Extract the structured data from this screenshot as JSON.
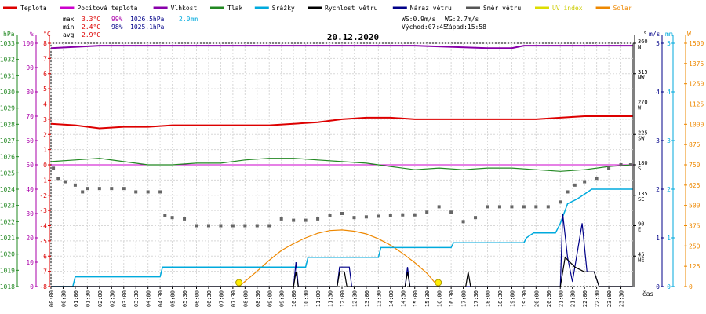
{
  "legend": [
    {
      "label": "Teplota",
      "color": "#dd0000"
    },
    {
      "label": "Pocitová teplota",
      "color": "#cc00cc"
    },
    {
      "label": "Vlhkost",
      "color": "#8800aa"
    },
    {
      "label": "Tlak",
      "color": "#228822"
    },
    {
      "label": "Srážky",
      "color": "#00aadd"
    },
    {
      "label": "Rychlost větru",
      "color": "#000000"
    },
    {
      "label": "Náraz větru",
      "color": "#000088"
    },
    {
      "label": "Směr větru",
      "color": "#555555"
    },
    {
      "label": "UV index",
      "color": "#dddd00"
    },
    {
      "label": "Solar",
      "color": "#ee8800"
    }
  ],
  "stats": {
    "max": {
      "label": "max",
      "temp": "3.3°C",
      "hum": "99%",
      "press": "1026.5hPa",
      "rain": "2.0mm"
    },
    "min": {
      "label": "min",
      "temp": "2.4°C",
      "hum": "98%",
      "press": "1025.1hPa"
    },
    "avg": {
      "label": "avg",
      "temp": "2.9°C"
    }
  },
  "wind_info": {
    "ws": "WS:0.9m/s",
    "wg": "WG:2.7m/s",
    "sunrise": "Východ:07:45",
    "sunset": "Západ:15:58"
  },
  "units": {
    "hpa": "hPa",
    "pct": "%",
    "degc": "°C",
    "deg": "°",
    "ms": "m/s",
    "mm": "mm",
    "w": "W",
    "time": "čas"
  },
  "chart_data": {
    "type": "line",
    "title": "20.12.2020",
    "x_ticks": [
      "00:00",
      "00:30",
      "01:00",
      "01:30",
      "02:00",
      "02:30",
      "03:00",
      "03:30",
      "04:00",
      "04:30",
      "05:00",
      "05:30",
      "06:00",
      "06:30",
      "07:00",
      "07:30",
      "08:00",
      "08:30",
      "09:00",
      "09:30",
      "10:00",
      "10:30",
      "11:00",
      "11:30",
      "12:00",
      "12:30",
      "13:00",
      "13:30",
      "14:00",
      "14:30",
      "15:00",
      "15:30",
      "16:00",
      "16:30",
      "17:00",
      "17:30",
      "18:00",
      "18:30",
      "19:00",
      "19:30",
      "20:00",
      "20:30",
      "21:00",
      "21:30",
      "22:00",
      "22:30",
      "23:00",
      "23:30"
    ],
    "axes": {
      "pressure_hpa": {
        "range": [
          1018,
          1033
        ],
        "ticks": [
          "1033",
          "1032",
          "1031",
          "1030",
          "1029",
          "1028",
          "1027",
          "1026",
          "1025",
          "1024",
          "1023",
          "1022",
          "1021",
          "1020",
          "1019",
          "1018"
        ]
      },
      "humidity_pct": {
        "range": [
          0,
          100
        ],
        "ticks": [
          "100",
          "90",
          "80",
          "70",
          "60",
          "50",
          "40",
          "30",
          "20",
          "10",
          "0"
        ]
      },
      "temperature_c": {
        "range": [
          -8,
          8
        ],
        "ticks": [
          "8",
          "7",
          "6",
          "5",
          "4",
          "3",
          "2",
          "1",
          "0",
          "-1",
          "-2",
          "-3",
          "-4",
          "-5",
          "-6",
          "-7",
          "-8"
        ]
      },
      "wind_dir_deg": {
        "range": [
          0,
          360
        ],
        "ticks": [
          {
            "v": "360",
            "d": "N"
          },
          {
            "v": "315",
            "d": "NW"
          },
          {
            "v": "270",
            "d": "W"
          },
          {
            "v": "225",
            "d": "SW"
          },
          {
            "v": "180",
            "d": "S"
          },
          {
            "v": "135",
            "d": "SE"
          },
          {
            "v": "90",
            "d": "E"
          },
          {
            "v": "45",
            "d": "NE"
          }
        ]
      },
      "wind_speed_ms": {
        "range": [
          0,
          5
        ],
        "ticks": [
          "5",
          "4",
          "3",
          "2",
          "1",
          "0"
        ]
      },
      "rain_mm": {
        "range": [
          0,
          5
        ],
        "ticks": [
          "5",
          "4",
          "3",
          "2",
          "1",
          "0"
        ]
      },
      "solar_w": {
        "range": [
          0,
          1500
        ],
        "ticks": [
          "1500",
          "1375",
          "1250",
          "1125",
          "1000",
          "875",
          "750",
          "625",
          "500",
          "375",
          "250",
          "125",
          "0"
        ]
      }
    },
    "series": [
      {
        "name": "Teplota",
        "unit": "°C",
        "points": [
          [
            0,
            2.7
          ],
          [
            1,
            2.6
          ],
          [
            2,
            2.4
          ],
          [
            3,
            2.5
          ],
          [
            4,
            2.5
          ],
          [
            5,
            2.6
          ],
          [
            6,
            2.6
          ],
          [
            7,
            2.6
          ],
          [
            8,
            2.6
          ],
          [
            9,
            2.6
          ],
          [
            10,
            2.7
          ],
          [
            11,
            2.8
          ],
          [
            12,
            3.0
          ],
          [
            13,
            3.1
          ],
          [
            14,
            3.1
          ],
          [
            15,
            3.0
          ],
          [
            16,
            3.0
          ],
          [
            17,
            3.0
          ],
          [
            18,
            3.0
          ],
          [
            19,
            3.0
          ],
          [
            20,
            3.0
          ],
          [
            21,
            3.1
          ],
          [
            22,
            3.2
          ],
          [
            23,
            3.2
          ],
          [
            23.98,
            3.2
          ]
        ]
      },
      {
        "name": "Vlhkost",
        "unit": "%",
        "points": [
          [
            0,
            98
          ],
          [
            2,
            99
          ],
          [
            4,
            99
          ],
          [
            8,
            99
          ],
          [
            12,
            99
          ],
          [
            15,
            99
          ],
          [
            18,
            98
          ],
          [
            19,
            98
          ],
          [
            19.5,
            99
          ],
          [
            23.98,
            99
          ]
        ]
      },
      {
        "name": "Tlak",
        "unit": "hPa",
        "points": [
          [
            0,
            1025.7
          ],
          [
            1,
            1025.8
          ],
          [
            2,
            1025.9
          ],
          [
            3,
            1025.7
          ],
          [
            4,
            1025.5
          ],
          [
            5,
            1025.5
          ],
          [
            6,
            1025.6
          ],
          [
            7,
            1025.6
          ],
          [
            8,
            1025.8
          ],
          [
            9,
            1025.9
          ],
          [
            10,
            1025.9
          ],
          [
            11,
            1025.8
          ],
          [
            12,
            1025.7
          ],
          [
            13,
            1025.6
          ],
          [
            14,
            1025.4
          ],
          [
            15,
            1025.2
          ],
          [
            16,
            1025.3
          ],
          [
            17,
            1025.2
          ],
          [
            18,
            1025.3
          ],
          [
            19,
            1025.3
          ],
          [
            20,
            1025.2
          ],
          [
            21,
            1025.1
          ],
          [
            22,
            1025.2
          ],
          [
            23,
            1025.4
          ],
          [
            23.98,
            1025.5
          ]
        ]
      },
      {
        "name": "Srážky",
        "unit": "mm",
        "points": [
          [
            0,
            0
          ],
          [
            0.9,
            0
          ],
          [
            1,
            0.2
          ],
          [
            4.5,
            0.2
          ],
          [
            4.6,
            0.4
          ],
          [
            10.5,
            0.4
          ],
          [
            10.6,
            0.6
          ],
          [
            13.5,
            0.6
          ],
          [
            13.6,
            0.8
          ],
          [
            16.5,
            0.8
          ],
          [
            16.6,
            0.9
          ],
          [
            19.5,
            0.9
          ],
          [
            19.6,
            1.0
          ],
          [
            19.9,
            1.1
          ],
          [
            20.8,
            1.1
          ],
          [
            21,
            1.3
          ],
          [
            21.3,
            1.7
          ],
          [
            21.7,
            1.8
          ],
          [
            22,
            1.9
          ],
          [
            22.3,
            2.0
          ],
          [
            23,
            2.0
          ],
          [
            23.98,
            2.0
          ]
        ]
      },
      {
        "name": "Rychlost větru",
        "unit": "m/s",
        "points": [
          [
            0,
            0
          ],
          [
            10,
            0
          ],
          [
            10.1,
            0.3
          ],
          [
            10.2,
            0
          ],
          [
            11.8,
            0
          ],
          [
            11.9,
            0.3
          ],
          [
            12.1,
            0.3
          ],
          [
            12.2,
            0
          ],
          [
            14.6,
            0
          ],
          [
            14.7,
            0.3
          ],
          [
            14.8,
            0
          ],
          [
            17.1,
            0
          ],
          [
            17.2,
            0.3
          ],
          [
            17.3,
            0
          ],
          [
            21,
            0
          ],
          [
            21.2,
            0.6
          ],
          [
            21.6,
            0.4
          ],
          [
            22,
            0.3
          ],
          [
            22.4,
            0.3
          ],
          [
            22.6,
            0
          ],
          [
            23.98,
            0
          ]
        ]
      },
      {
        "name": "Náraz větru",
        "unit": "m/s",
        "points": [
          [
            0,
            0
          ],
          [
            10,
            0
          ],
          [
            10.1,
            0.5
          ],
          [
            10.2,
            0
          ],
          [
            11.8,
            0
          ],
          [
            11.9,
            0.4
          ],
          [
            12.3,
            0.4
          ],
          [
            12.4,
            0
          ],
          [
            14.6,
            0
          ],
          [
            14.7,
            0.4
          ],
          [
            14.8,
            0
          ],
          [
            21,
            0
          ],
          [
            21.1,
            1.5
          ],
          [
            21.3,
            0.6
          ],
          [
            21.5,
            0.1
          ],
          [
            21.9,
            1.3
          ],
          [
            22.1,
            0.3
          ],
          [
            22.4,
            0.3
          ],
          [
            22.6,
            0
          ],
          [
            23.98,
            0
          ]
        ]
      },
      {
        "name": "Solar",
        "unit": "W",
        "points": [
          [
            7.75,
            0
          ],
          [
            8.5,
            95
          ],
          [
            9,
            162
          ],
          [
            9.5,
            222
          ],
          [
            10,
            264
          ],
          [
            10.5,
            300
          ],
          [
            11,
            328
          ],
          [
            11.5,
            345
          ],
          [
            12,
            349
          ],
          [
            12.5,
            341
          ],
          [
            13,
            324
          ],
          [
            13.5,
            294
          ],
          [
            14,
            255
          ],
          [
            14.5,
            204
          ],
          [
            15,
            147
          ],
          [
            15.5,
            82
          ],
          [
            15.97,
            0
          ]
        ]
      }
    ],
    "wind_direction": [
      [
        0.1,
        175
      ],
      [
        0.3,
        160
      ],
      [
        0.6,
        155
      ],
      [
        1,
        150
      ],
      [
        1.3,
        140
      ],
      [
        1.5,
        145
      ],
      [
        2,
        145
      ],
      [
        2.5,
        145
      ],
      [
        3,
        145
      ],
      [
        3.5,
        140
      ],
      [
        4,
        140
      ],
      [
        4.5,
        140
      ],
      [
        4.7,
        105
      ],
      [
        5,
        102
      ],
      [
        5.5,
        100
      ],
      [
        6,
        90
      ],
      [
        6.5,
        90
      ],
      [
        7,
        90
      ],
      [
        7.5,
        90
      ],
      [
        8,
        90
      ],
      [
        8.5,
        90
      ],
      [
        9,
        90
      ],
      [
        9.5,
        100
      ],
      [
        10,
        98
      ],
      [
        10.5,
        98
      ],
      [
        11,
        100
      ],
      [
        11.5,
        105
      ],
      [
        12,
        108
      ],
      [
        12.5,
        102
      ],
      [
        13,
        103
      ],
      [
        13.5,
        104
      ],
      [
        14,
        105
      ],
      [
        14.5,
        106
      ],
      [
        15,
        106
      ],
      [
        15.5,
        110
      ],
      [
        16,
        118
      ],
      [
        16.5,
        110
      ],
      [
        17,
        96
      ],
      [
        17.5,
        102
      ],
      [
        18,
        118
      ],
      [
        18.5,
        118
      ],
      [
        19,
        118
      ],
      [
        19.5,
        118
      ],
      [
        20,
        118
      ],
      [
        20.5,
        118
      ],
      [
        21,
        125
      ],
      [
        21.3,
        140
      ],
      [
        21.6,
        150
      ],
      [
        22,
        155
      ],
      [
        22.5,
        160
      ],
      [
        23,
        175
      ],
      [
        23.5,
        180
      ],
      [
        23.9,
        180
      ]
    ],
    "uv_markers": [
      7.75,
      15.97
    ]
  }
}
